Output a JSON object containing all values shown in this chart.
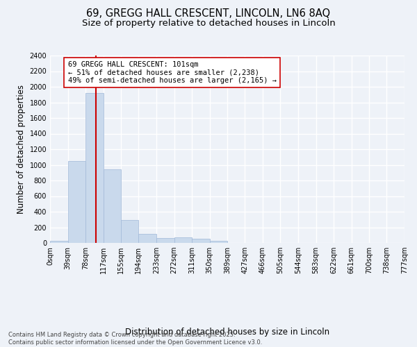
{
  "title_line1": "69, GREGG HALL CRESCENT, LINCOLN, LN6 8AQ",
  "title_line2": "Size of property relative to detached houses in Lincoln",
  "xlabel": "Distribution of detached houses by size in Lincoln",
  "ylabel": "Number of detached properties",
  "bar_color": "#c9d9ec",
  "bar_edgecolor": "#a0b8d8",
  "background_color": "#eef2f8",
  "grid_color": "#ffffff",
  "vline_x": 101,
  "vline_color": "#cc0000",
  "annotation_text": "69 GREGG HALL CRESCENT: 101sqm\n← 51% of detached houses are smaller (2,238)\n49% of semi-detached houses are larger (2,165) →",
  "annotation_box_color": "#ffffff",
  "annotation_box_edgecolor": "#cc0000",
  "bins": [
    0,
    39,
    78,
    117,
    155,
    194,
    233,
    272,
    311,
    350,
    389,
    427,
    466,
    505,
    544,
    583,
    622,
    661,
    700,
    738,
    777
  ],
  "counts": [
    30,
    1050,
    1920,
    940,
    295,
    120,
    60,
    75,
    55,
    30,
    0,
    0,
    0,
    0,
    0,
    0,
    0,
    0,
    0,
    0
  ],
  "ylim": [
    0,
    2400
  ],
  "yticks": [
    0,
    200,
    400,
    600,
    800,
    1000,
    1200,
    1400,
    1600,
    1800,
    2000,
    2200,
    2400
  ],
  "tick_labels": [
    "0sqm",
    "39sqm",
    "78sqm",
    "117sqm",
    "155sqm",
    "194sqm",
    "233sqm",
    "272sqm",
    "311sqm",
    "350sqm",
    "389sqm",
    "427sqm",
    "466sqm",
    "505sqm",
    "544sqm",
    "583sqm",
    "622sqm",
    "661sqm",
    "700sqm",
    "738sqm",
    "777sqm"
  ],
  "footer_text": "Contains HM Land Registry data © Crown copyright and database right 2025.\nContains public sector information licensed under the Open Government Licence v3.0.",
  "title_fontsize": 10.5,
  "subtitle_fontsize": 9.5,
  "axis_label_fontsize": 8.5,
  "tick_fontsize": 7,
  "annotation_fontsize": 7.5,
  "footer_fontsize": 6
}
